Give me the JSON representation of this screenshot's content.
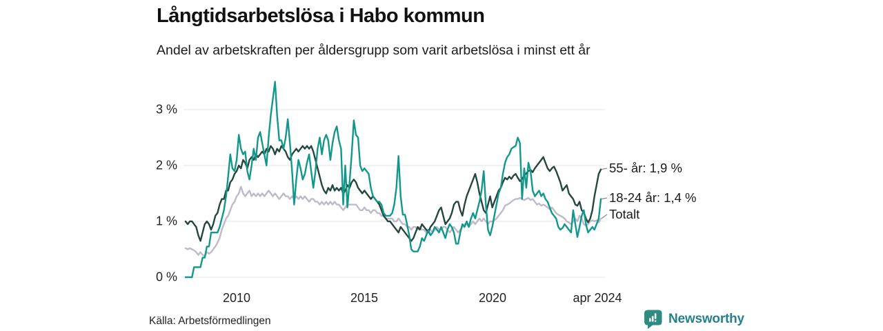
{
  "title": "Långtidsarbetslösa i Habo kommun",
  "subtitle": "Andel av arbetskraften per åldersgrupp som varit arbetslösa i minst ett år",
  "source": "Källa: Arbetsförmedlingen",
  "branding": {
    "name": "Newsworthy",
    "icon": "bar-chart-speech-bubble",
    "color": "#2e8b80",
    "text_color": "#27808d"
  },
  "chart_data": {
    "type": "line",
    "title": "Långtidsarbetslösa i Habo kommun",
    "subtitle": "Andel av arbetskraften per åldersgrupp som varit arbetslösa i minst ett år",
    "x_start": "2008-01",
    "x_end": "2024-04",
    "x_interval": "monthly",
    "xticks": [
      "2010",
      "2015",
      "2020",
      "apr 2024"
    ],
    "yticks": [
      "3 %",
      "2 %",
      "1 %",
      "0 %"
    ],
    "gridline_values": [
      0,
      1,
      2,
      3
    ],
    "grid": "horizontal",
    "grid_color": "#e5e3ea",
    "ylim": [
      0,
      3.6
    ],
    "legend_position": "right-end-labels",
    "series": [
      {
        "name": "55- år",
        "end_label": "55- år: 1,9 %",
        "last_value": 1.9,
        "color": "#25453f",
        "values": [
          1.0,
          0.95,
          1.0,
          1.0,
          0.95,
          0.9,
          0.75,
          0.65,
          0.8,
          0.95,
          1.0,
          0.95,
          0.85,
          0.95,
          1.1,
          1.15,
          1.3,
          1.4,
          1.4,
          1.55,
          1.55,
          1.7,
          1.75,
          1.85,
          1.9,
          2.0,
          1.95,
          2.1,
          2.05,
          1.95,
          2.1,
          2.15,
          2.1,
          2.2,
          2.15,
          2.2,
          2.25,
          2.2,
          2.3,
          2.25,
          2.35,
          2.3,
          2.2,
          2.3,
          2.25,
          2.35,
          2.3,
          2.25,
          2.15,
          2.1,
          2.2,
          2.25,
          2.3,
          2.25,
          2.3,
          2.35,
          2.3,
          2.35,
          2.3,
          2.35,
          2.25,
          2.1,
          1.95,
          1.8,
          1.65,
          1.55,
          1.5,
          1.6,
          1.55,
          1.65,
          1.55,
          1.6,
          1.55,
          1.6,
          1.5,
          1.55,
          1.65,
          1.6,
          1.7,
          1.75,
          1.7,
          1.6,
          1.55,
          1.5,
          1.55,
          1.5,
          1.45,
          1.4,
          1.45,
          1.4,
          1.35,
          1.3,
          1.2,
          1.1,
          1.05,
          1.0,
          1.0,
          0.95,
          0.9,
          0.85,
          0.8,
          0.9,
          0.85,
          0.8,
          0.75,
          0.7,
          0.65,
          0.7,
          0.8,
          0.9,
          0.85,
          0.95,
          0.9,
          0.85,
          0.8,
          0.9,
          0.95,
          1.0,
          1.1,
          1.2,
          1.25,
          1.1,
          0.95,
          1.0,
          1.05,
          1.15,
          1.3,
          1.35,
          1.35,
          1.2,
          1.1,
          1.3,
          1.45,
          1.55,
          1.65,
          1.75,
          1.85,
          1.7,
          1.5,
          1.35,
          1.2,
          1.15,
          1.3,
          1.45,
          1.25,
          1.35,
          1.45,
          1.55,
          1.6,
          1.7,
          1.78,
          1.75,
          1.8,
          1.76,
          1.82,
          1.85,
          1.78,
          1.72,
          1.76,
          1.82,
          1.86,
          1.9,
          1.92,
          1.88,
          1.95,
          2.0,
          2.05,
          2.1,
          2.15,
          2.05,
          1.95,
          1.9,
          1.95,
          1.98,
          1.9,
          1.8,
          1.7,
          1.55,
          1.6,
          1.65,
          1.5,
          1.45,
          1.4,
          1.3,
          1.28,
          1.35,
          1.2,
          1.16,
          1.05,
          0.98,
          1.05,
          1.2,
          1.45,
          1.65,
          1.85,
          1.93
        ]
      },
      {
        "name": "18-24 år",
        "end_label": "18-24 år: 1,4 %",
        "last_value": 1.4,
        "color": "#12988b",
        "values": [
          0.0,
          0.0,
          0.0,
          0.0,
          0.18,
          0.18,
          0.18,
          0.18,
          0.35,
          0.35,
          0.55,
          0.55,
          0.8,
          0.8,
          0.8,
          0.8,
          0.9,
          1.05,
          1.2,
          1.45,
          1.8,
          2.2,
          1.95,
          1.9,
          2.1,
          2.55,
          2.3,
          2.2,
          2.25,
          1.9,
          1.75,
          2.0,
          2.3,
          2.1,
          2.5,
          2.6,
          2.4,
          2.2,
          2.0,
          2.5,
          2.9,
          3.2,
          3.5,
          2.9,
          2.45,
          2.45,
          2.3,
          2.5,
          2.83,
          2.4,
          1.9,
          1.3,
          1.75,
          2.1,
          1.95,
          1.75,
          1.85,
          2.05,
          2.2,
          1.9,
          1.6,
          1.9,
          2.3,
          2.5,
          2.2,
          2.45,
          2.55,
          2.45,
          2.1,
          2.4,
          2.6,
          2.7,
          2.45,
          2.3,
          1.3,
          2.0,
          1.25,
          1.7,
          2.2,
          2.81,
          2.55,
          2.5,
          2.0,
          1.9,
          1.95,
          1.9,
          1.85,
          1.6,
          1.45,
          1.4,
          1.35,
          1.35,
          1.3,
          1.15,
          1.1,
          1.1,
          1.1,
          1.15,
          1.3,
          1.6,
          2.17,
          1.45,
          1.12,
          1.12,
          0.95,
          0.75,
          0.5,
          0.46,
          0.46,
          0.46,
          0.55,
          0.7,
          0.65,
          0.75,
          0.85,
          0.75,
          0.8,
          0.9,
          0.85,
          0.8,
          0.9,
          0.8,
          0.7,
          0.85,
          0.95,
          0.9,
          0.8,
          0.6,
          0.6,
          0.8,
          0.95,
          0.9,
          1.0,
          0.9,
          1.05,
          1.15,
          1.05,
          1.2,
          1.35,
          1.55,
          1.9,
          1.3,
          0.85,
          0.75,
          0.9,
          1.1,
          1.3,
          1.5,
          1.6,
          1.85,
          2.05,
          2.15,
          2.2,
          2.3,
          2.33,
          2.35,
          2.5,
          2.4,
          1.4,
          1.95,
          1.6,
          2.05,
          1.9,
          1.55,
          1.45,
          1.5,
          1.55,
          1.45,
          1.5,
          1.4,
          1.35,
          1.25,
          1.15,
          1.1,
          1.05,
          0.9,
          0.85,
          0.88,
          0.95,
          0.9,
          0.85,
          0.8,
          1.2,
          0.95,
          0.72,
          0.9,
          1.1,
          1.2,
          0.95,
          0.8,
          0.85,
          0.9,
          0.85,
          0.95,
          1.05,
          1.4
        ]
      },
      {
        "name": "Totalt",
        "end_label": "Totalt",
        "last_value": 1.05,
        "color": "#bdbbc7",
        "values": [
          0.52,
          0.5,
          0.52,
          0.5,
          0.48,
          0.45,
          0.4,
          0.45,
          0.4,
          0.38,
          0.45,
          0.42,
          0.45,
          0.5,
          0.55,
          0.62,
          0.7,
          0.85,
          0.95,
          1.05,
          1.1,
          1.2,
          1.3,
          1.35,
          1.45,
          1.5,
          1.62,
          1.5,
          1.45,
          1.5,
          1.55,
          1.45,
          1.5,
          1.45,
          1.5,
          1.45,
          1.5,
          1.45,
          1.5,
          1.55,
          1.5,
          1.45,
          1.5,
          1.45,
          1.4,
          1.45,
          1.5,
          1.45,
          1.45,
          1.4,
          1.45,
          1.4,
          1.45,
          1.4,
          1.45,
          1.4,
          1.45,
          1.4,
          1.35,
          1.4,
          1.4,
          1.35,
          1.35,
          1.3,
          1.35,
          1.3,
          1.35,
          1.3,
          1.35,
          1.3,
          1.35,
          1.3,
          1.3,
          1.25,
          1.2,
          1.25,
          1.3,
          1.3,
          1.3,
          1.3,
          1.3,
          1.25,
          1.2,
          1.2,
          1.25,
          1.2,
          1.2,
          1.15,
          1.2,
          1.2,
          1.15,
          1.15,
          1.1,
          1.1,
          1.05,
          1.05,
          1.05,
          1.05,
          1.0,
          1.0,
          1.05,
          1.0,
          0.95,
          0.95,
          0.9,
          0.9,
          0.85,
          0.9,
          0.9,
          0.85,
          0.9,
          0.85,
          0.85,
          0.8,
          0.85,
          0.85,
          0.8,
          0.85,
          0.9,
          0.85,
          0.85,
          0.9,
          0.9,
          0.85,
          0.8,
          0.85,
          0.9,
          0.85,
          0.8,
          0.85,
          0.9,
          0.95,
          0.95,
          0.9,
          0.95,
          1.0,
          0.95,
          1.0,
          1.05,
          1.0,
          1.05,
          1.0,
          0.95,
          1.0,
          1.0,
          1.02,
          1.05,
          1.1,
          1.15,
          1.2,
          1.28,
          1.3,
          1.32,
          1.35,
          1.38,
          1.4,
          1.4,
          1.42,
          1.4,
          1.38,
          1.4,
          1.42,
          1.38,
          1.4,
          1.35,
          1.3,
          1.32,
          1.28,
          1.3,
          1.28,
          1.25,
          1.22,
          1.25,
          1.2,
          1.15,
          1.12,
          1.1,
          1.08,
          1.05,
          1.0,
          0.98,
          0.95,
          1.0,
          1.05,
          1.0,
          1.1,
          1.05,
          0.95,
          0.92,
          0.95,
          1.0,
          1.02,
          1.0,
          1.02,
          0.98,
          1.05
        ]
      }
    ]
  }
}
